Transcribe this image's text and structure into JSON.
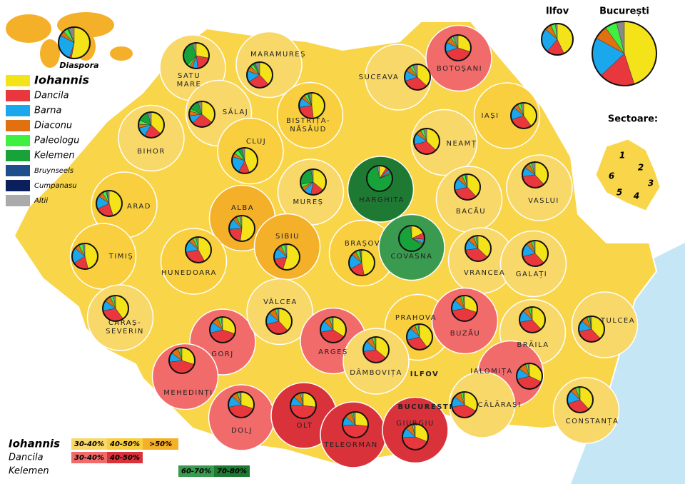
{
  "candidates": [
    {
      "name": "Iohannis",
      "color": "#f5e31a"
    },
    {
      "name": "Dancila",
      "color": "#e8383d"
    },
    {
      "name": "Barna",
      "color": "#1aa7ec"
    },
    {
      "name": "Diaconu",
      "color": "#e07010"
    },
    {
      "name": "Paleologu",
      "color": "#40f040"
    },
    {
      "name": "Kelemen",
      "color": "#17a33a"
    },
    {
      "name": "Bruynseels",
      "color": "#1f4e8c"
    },
    {
      "name": "Cumpanasu",
      "color": "#0a1f5c"
    },
    {
      "name": "Altii",
      "color": "#aaaaaa"
    }
  ],
  "fills": [
    "#f9d86a",
    "#f9cf40",
    "#f5b02a",
    "#f26b6b",
    "#d9323a",
    "#3a9a50",
    "#1e7a33"
  ],
  "diaspora": {
    "name": "Diaspora",
    "shares": [
      53,
      2,
      28,
      5,
      5,
      1
    ]
  },
  "top": [
    {
      "name": "Ilfov",
      "shares": [
        43,
        18,
        25,
        7,
        5,
        0
      ]
    },
    {
      "name": "București",
      "shares": [
        45,
        18,
        20,
        7,
        6,
        0
      ]
    }
  ],
  "counties": [
    {
      "lines": [
        "SATU",
        "MARE"
      ],
      "shares": [
        28,
        20,
        7,
        4,
        3,
        33
      ],
      "fill": 0
    },
    {
      "lines": [
        "MARAMUREȘ"
      ],
      "shares": [
        38,
        28,
        14,
        7,
        4,
        3
      ],
      "fill": 0
    },
    {
      "lines": [
        "SUCEAVA"
      ],
      "shares": [
        37,
        33,
        13,
        7,
        4,
        0
      ],
      "fill": 0
    },
    {
      "lines": [
        "BOTOȘANI"
      ],
      "shares": [
        30,
        40,
        12,
        8,
        3,
        0
      ],
      "fill": 3
    },
    {
      "lines": [
        "IAȘI"
      ],
      "shares": [
        40,
        30,
        16,
        6,
        4,
        0
      ],
      "fill": 1
    },
    {
      "lines": [
        "NEAMȚ"
      ],
      "shares": [
        37,
        34,
        14,
        7,
        4,
        0
      ],
      "fill": 0
    },
    {
      "lines": [
        "BIHOR"
      ],
      "shares": [
        37,
        22,
        12,
        5,
        5,
        14
      ],
      "fill": 0
    },
    {
      "lines": [
        "SĂLAJ"
      ],
      "shares": [
        36,
        27,
        10,
        6,
        3,
        13
      ],
      "fill": 0
    },
    {
      "lines": [
        "CLUJ"
      ],
      "shares": [
        44,
        14,
        22,
        5,
        6,
        5
      ],
      "fill": 1
    },
    {
      "lines": [
        "BISTRIȚA-",
        "NĂSĂUD"
      ],
      "shares": [
        48,
        25,
        12,
        5,
        4,
        2
      ],
      "fill": 1
    },
    {
      "lines": [
        "MUREȘ"
      ],
      "shares": [
        36,
        17,
        10,
        5,
        4,
        25
      ],
      "fill": 0
    },
    {
      "lines": [
        "HARGHITA"
      ],
      "shares": [
        9,
        4,
        3,
        2,
        1,
        78
      ],
      "fill": 6
    },
    {
      "lines": [
        "VASLUI"
      ],
      "shares": [
        38,
        35,
        12,
        7,
        3,
        0
      ],
      "fill": 0
    },
    {
      "lines": [
        "BACĂU"
      ],
      "shares": [
        38,
        33,
        15,
        7,
        4,
        1
      ],
      "fill": 0
    },
    {
      "lines": [
        "ARAD"
      ],
      "shares": [
        45,
        23,
        17,
        6,
        5,
        1
      ],
      "fill": 1
    },
    {
      "lines": [
        "ALBA"
      ],
      "shares": [
        52,
        22,
        14,
        5,
        4,
        0
      ],
      "fill": 2
    },
    {
      "lines": [
        "SIBIU"
      ],
      "shares": [
        55,
        17,
        15,
        5,
        5,
        0
      ],
      "fill": 2
    },
    {
      "lines": [
        "BRAȘOV"
      ],
      "shares": [
        47,
        20,
        19,
        6,
        5,
        1
      ],
      "fill": 1
    },
    {
      "lines": [
        "COVASNA"
      ],
      "shares": [
        18,
        8,
        5,
        2,
        1,
        64
      ],
      "fill": 5
    },
    {
      "lines": [
        "TIMIȘ"
      ],
      "shares": [
        46,
        20,
        20,
        6,
        5,
        0
      ],
      "fill": 1
    },
    {
      "lines": [
        "HUNEDOARA"
      ],
      "shares": [
        42,
        30,
        15,
        6,
        4,
        0
      ],
      "fill": 1
    },
    {
      "lines": [
        "VRANCEA"
      ],
      "shares": [
        37,
        36,
        13,
        8,
        3,
        0
      ],
      "fill": 0
    },
    {
      "lines": [
        "GALAȚI"
      ],
      "shares": [
        38,
        33,
        17,
        7,
        3,
        0
      ],
      "fill": 0
    },
    {
      "lines": [
        "CARAȘ-",
        "SEVERIN"
      ],
      "shares": [
        40,
        32,
        13,
        8,
        4,
        0
      ],
      "fill": 0
    },
    {
      "lines": [
        "GORJ"
      ],
      "shares": [
        30,
        41,
        14,
        9,
        4,
        0
      ],
      "fill": 3
    },
    {
      "lines": [
        "VÂLCEA"
      ],
      "shares": [
        38,
        33,
        15,
        9,
        3,
        0
      ],
      "fill": 0
    },
    {
      "lines": [
        "ARGEȘ"
      ],
      "shares": [
        34,
        38,
        15,
        8,
        3,
        0
      ],
      "fill": 3
    },
    {
      "lines": [
        "PRAHOVA"
      ],
      "shares": [
        40,
        31,
        16,
        7,
        4,
        0
      ],
      "fill": 1
    },
    {
      "lines": [
        "BUZĂU"
      ],
      "shares": [
        30,
        42,
        14,
        9,
        3,
        0
      ],
      "fill": 3
    },
    {
      "lines": [
        "BRĂILA"
      ],
      "shares": [
        38,
        34,
        15,
        8,
        3,
        0
      ],
      "fill": 0
    },
    {
      "lines": [
        "TULCEA"
      ],
      "shares": [
        38,
        34,
        14,
        8,
        3,
        1
      ],
      "fill": 0
    },
    {
      "lines": [
        "MEHEDINȚI"
      ],
      "shares": [
        30,
        43,
        12,
        10,
        3,
        0
      ],
      "fill": 3
    },
    {
      "lines": [
        "DÂMBOVIȚA"
      ],
      "shares": [
        36,
        37,
        14,
        8,
        3,
        0
      ],
      "fill": 0
    },
    {
      "lines": [
        "IALOMIȚA"
      ],
      "shares": [
        32,
        39,
        14,
        10,
        3,
        0
      ],
      "fill": 3
    },
    {
      "lines": [
        "DOLJ"
      ],
      "shares": [
        30,
        42,
        15,
        8,
        3,
        0
      ],
      "fill": 3
    },
    {
      "lines": [
        "OLT"
      ],
      "shares": [
        27,
        48,
        12,
        9,
        2,
        0
      ],
      "fill": 4
    },
    {
      "lines": [
        "TELEORMAN"
      ],
      "shares": [
        27,
        47,
        12,
        9,
        2,
        0
      ],
      "fill": 4
    },
    {
      "lines": [
        "GIURGIU"
      ],
      "shares": [
        31,
        43,
        13,
        9,
        2,
        0
      ],
      "fill": 4
    },
    {
      "lines": [
        "CĂLĂRAȘI"
      ],
      "shares": [
        33,
        39,
        14,
        9,
        3,
        0
      ],
      "fill": 0
    },
    {
      "lines": [
        "CONSTANȚA"
      ],
      "shares": [
        38,
        32,
        17,
        7,
        4,
        0
      ],
      "fill": 0
    },
    {
      "lines": [
        "ILFOV"
      ]
    },
    {
      "lines": [
        "BUCUREȘTI"
      ]
    }
  ],
  "sectors": {
    "title": "Sectoare:",
    "labels": [
      "1",
      "2",
      "3",
      "4",
      "5",
      "6"
    ]
  },
  "range_legend": [
    {
      "name": "Iohannis",
      "boxes": [
        {
          "label": "30-40%",
          "color": "#f9d86a"
        },
        {
          "label": "40-50%",
          "color": "#f9cf40"
        },
        {
          "label": ">50%",
          "color": "#f5b02a"
        }
      ]
    },
    {
      "name": "Dancila",
      "boxes": [
        {
          "label": "30-40%",
          "color": "#f26b6b"
        },
        {
          "label": "40-50%",
          "color": "#d9323a"
        }
      ]
    },
    {
      "name": "Kelemen",
      "boxes": [
        {
          "label": "60-70%",
          "color": "#3a9a50"
        },
        {
          "label": "70-80%",
          "color": "#1e7a33"
        }
      ]
    }
  ]
}
